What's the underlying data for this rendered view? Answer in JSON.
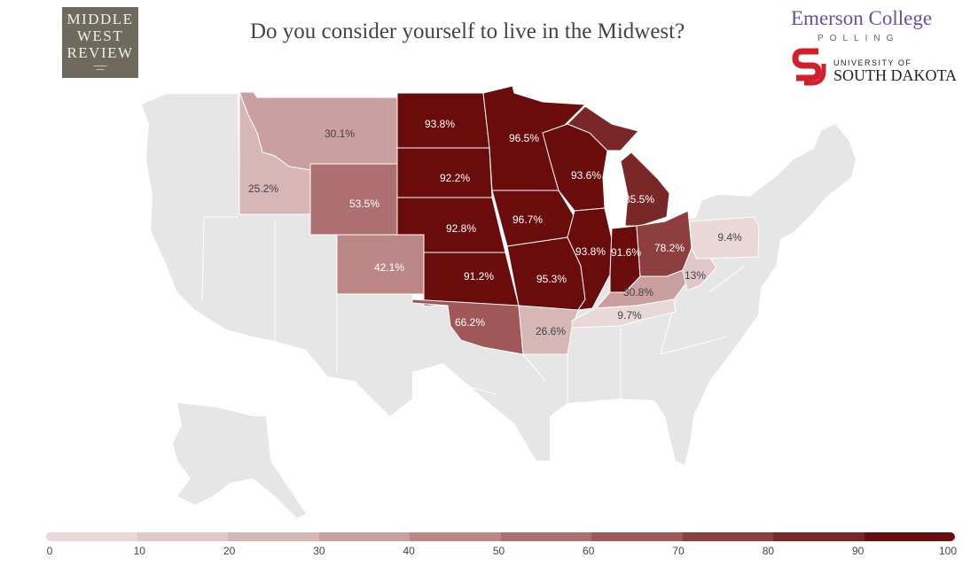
{
  "title": "Do you consider yourself to live in the Midwest?",
  "logos": {
    "middle_west_review": [
      "MIDDLE",
      "WEST",
      "REVIEW"
    ],
    "emerson": "Emerson College",
    "emerson_sub": "POLLING",
    "usd_line1": "UNIVERSITY OF",
    "usd_line2": "SOUTH DAKOTA"
  },
  "colors": {
    "no_data": "#e6e6e6",
    "scale": [
      "#ead8d8",
      "#e0c8c8",
      "#d6b6b6",
      "#c99f9f",
      "#bb8686",
      "#ad6f6f",
      "#9f5757",
      "#8e3e3e",
      "#7a2727",
      "#6a0c0c"
    ],
    "usd_red": "#d21f2c"
  },
  "legend": {
    "ticks": [
      "0",
      "10",
      "20",
      "30",
      "40",
      "50",
      "60",
      "70",
      "80",
      "90",
      "100"
    ]
  },
  "states": [
    {
      "id": "MT",
      "label": "30.1%",
      "value": 30.1
    },
    {
      "id": "ID",
      "label": "25.2%",
      "value": 25.2
    },
    {
      "id": "WY",
      "label": "53.5%",
      "value": 53.5
    },
    {
      "id": "CO",
      "label": "42.1%",
      "value": 42.1
    },
    {
      "id": "ND",
      "label": "93.8%",
      "value": 93.8
    },
    {
      "id": "SD",
      "label": "92.2%",
      "value": 92.2
    },
    {
      "id": "NE",
      "label": "92.8%",
      "value": 92.8
    },
    {
      "id": "KS",
      "label": "91.2%",
      "value": 91.2
    },
    {
      "id": "OK",
      "label": "66.2%",
      "value": 66.2
    },
    {
      "id": "MN",
      "label": "96.5%",
      "value": 96.5
    },
    {
      "id": "IA",
      "label": "96.7%",
      "value": 96.7
    },
    {
      "id": "MO",
      "label": "95.3%",
      "value": 95.3
    },
    {
      "id": "AR",
      "label": "26.6%",
      "value": 26.6
    },
    {
      "id": "WI",
      "label": "93.6%",
      "value": 93.6
    },
    {
      "id": "IL",
      "label": "93.8%",
      "value": 93.8
    },
    {
      "id": "MI",
      "label": "85.5%",
      "value": 85.5
    },
    {
      "id": "IN",
      "label": "91.6%",
      "value": 91.6
    },
    {
      "id": "OH",
      "label": "78.2%",
      "value": 78.2
    },
    {
      "id": "KY",
      "label": "30.8%",
      "value": 30.8
    },
    {
      "id": "WV",
      "label": "13%",
      "value": 13
    },
    {
      "id": "PA",
      "label": "9.4%",
      "value": 9.4
    },
    {
      "id": "TN",
      "label": "9.7%",
      "value": 9.7
    }
  ]
}
